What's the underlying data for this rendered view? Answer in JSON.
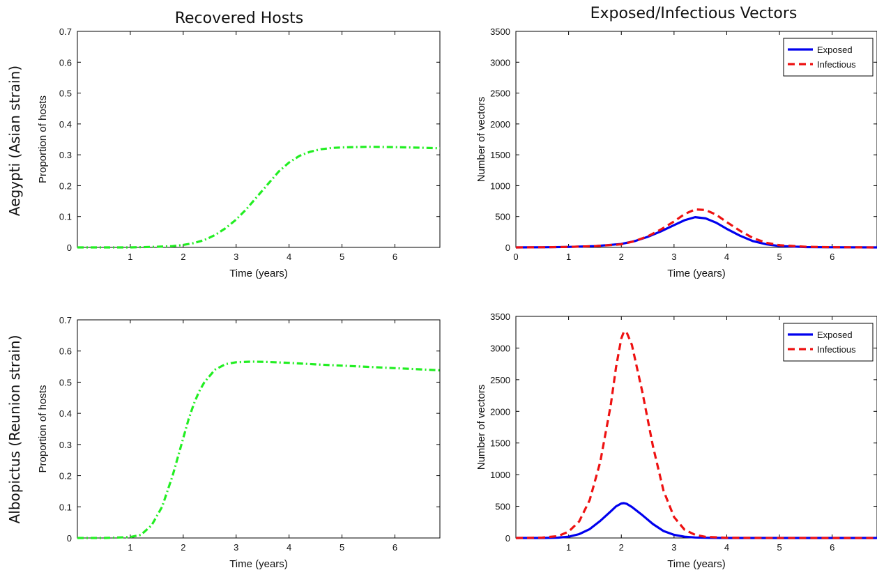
{
  "figure": {
    "col_titles": [
      "Recovered Hosts",
      "Exposed/Infectious Vectors"
    ],
    "row_labels": [
      "Aegypti (Asian strain)",
      "Albopictus (Reunion strain)"
    ]
  },
  "colors": {
    "recovered": "#22ee22",
    "exposed": "#0000ee",
    "infectious": "#ee1111"
  },
  "chart_data": [
    {
      "type": "line",
      "title": "Recovered Hosts",
      "row_label": "Aegypti (Asian strain)",
      "xlabel": "Time (years)",
      "ylabel": "Proportion of hosts",
      "xlim": [
        0,
        6.85
      ],
      "ylim": [
        0,
        0.7
      ],
      "xticks": [
        1,
        2,
        3,
        4,
        5,
        6
      ],
      "xtick_labels": [
        "1",
        "2",
        "3",
        "4",
        "5",
        "6"
      ],
      "yticks": [
        0,
        0.1,
        0.2,
        0.3,
        0.4,
        0.5,
        0.6,
        0.7
      ],
      "ytick_labels": [
        "0",
        "0.1",
        "0.2",
        "0.3",
        "0.4",
        "0.5",
        "0.6",
        "0.7"
      ],
      "grid": false,
      "legend": null,
      "series": [
        {
          "color_key": "recovered",
          "dash": "dashdot",
          "x": [
            0,
            0.5,
            1,
            1.5,
            1.8,
            2,
            2.2,
            2.4,
            2.6,
            2.8,
            3,
            3.2,
            3.4,
            3.6,
            3.8,
            4,
            4.2,
            4.4,
            4.6,
            4.8,
            5,
            5.5,
            6,
            6.5,
            6.85
          ],
          "y": [
            0,
            0,
            0,
            0.002,
            0.004,
            0.008,
            0.014,
            0.024,
            0.04,
            0.062,
            0.09,
            0.125,
            0.165,
            0.205,
            0.245,
            0.275,
            0.297,
            0.31,
            0.318,
            0.322,
            0.324,
            0.326,
            0.325,
            0.323,
            0.321
          ]
        }
      ]
    },
    {
      "type": "line",
      "title": "Exposed/Infectious Vectors",
      "xlabel": "Time (years)",
      "ylabel": "Number of vectors",
      "xlim": [
        0,
        6.85
      ],
      "ylim": [
        0,
        3500
      ],
      "xticks": [
        0,
        1,
        2,
        3,
        4,
        5,
        6
      ],
      "xtick_labels": [
        "0",
        "1",
        "2",
        "3",
        "4",
        "5",
        "6"
      ],
      "yticks": [
        0,
        500,
        1000,
        1500,
        2000,
        2500,
        3000,
        3500
      ],
      "ytick_labels": [
        "0",
        "500",
        "1000",
        "1500",
        "2000",
        "2500",
        "3000",
        "3500"
      ],
      "grid": false,
      "legend": "top-right",
      "series": [
        {
          "name": "Exposed",
          "color_key": "exposed",
          "dash": "solid",
          "x": [
            0,
            0.5,
            1,
            1.5,
            2,
            2.25,
            2.5,
            2.75,
            3,
            3.2,
            3.4,
            3.6,
            3.8,
            4,
            4.25,
            4.5,
            4.75,
            5,
            5.5,
            6,
            6.85
          ],
          "y": [
            0,
            2,
            8,
            20,
            55,
            100,
            170,
            260,
            360,
            440,
            490,
            470,
            400,
            300,
            190,
            100,
            50,
            22,
            6,
            2,
            0
          ]
        },
        {
          "name": "Infectious",
          "color_key": "infectious",
          "dash": "dashed",
          "x": [
            0,
            0.5,
            1,
            1.5,
            2,
            2.25,
            2.5,
            2.75,
            3,
            3.2,
            3.4,
            3.6,
            3.8,
            4,
            4.25,
            4.5,
            4.75,
            5,
            5.5,
            6,
            6.85
          ],
          "y": [
            0,
            2,
            8,
            20,
            50,
            100,
            180,
            290,
            420,
            540,
            615,
            605,
            530,
            410,
            270,
            150,
            75,
            35,
            10,
            3,
            0
          ]
        }
      ]
    },
    {
      "type": "line",
      "row_label": "Albopictus (Reunion strain)",
      "xlabel": "Time (years)",
      "ylabel": "Proportion of hosts",
      "xlim": [
        0,
        6.85
      ],
      "ylim": [
        0,
        0.7
      ],
      "xticks": [
        1,
        2,
        3,
        4,
        5,
        6
      ],
      "xtick_labels": [
        "1",
        "2",
        "3",
        "4",
        "5",
        "6"
      ],
      "yticks": [
        0,
        0.1,
        0.2,
        0.3,
        0.4,
        0.5,
        0.6,
        0.7
      ],
      "ytick_labels": [
        "0",
        "0.1",
        "0.2",
        "0.3",
        "0.4",
        "0.5",
        "0.6",
        "0.7"
      ],
      "grid": false,
      "legend": null,
      "series": [
        {
          "color_key": "recovered",
          "dash": "dashdot",
          "x": [
            0,
            0.5,
            1,
            1.2,
            1.4,
            1.6,
            1.8,
            1.9,
            2,
            2.1,
            2.2,
            2.3,
            2.4,
            2.6,
            2.8,
            3,
            3.3,
            3.6,
            4,
            4.5,
            5,
            5.5,
            6,
            6.5,
            6.85
          ],
          "y": [
            0,
            0,
            0.003,
            0.01,
            0.04,
            0.1,
            0.2,
            0.26,
            0.32,
            0.38,
            0.43,
            0.47,
            0.5,
            0.54,
            0.558,
            0.564,
            0.566,
            0.565,
            0.562,
            0.557,
            0.553,
            0.549,
            0.545,
            0.541,
            0.538
          ]
        }
      ]
    },
    {
      "type": "line",
      "xlabel": "Time (years)",
      "ylabel": "Number of vectors",
      "xlim": [
        0,
        6.85
      ],
      "ylim": [
        0,
        3500
      ],
      "xticks": [
        1,
        2,
        3,
        4,
        5,
        6
      ],
      "xtick_labels": [
        "1",
        "2",
        "3",
        "4",
        "5",
        "6"
      ],
      "yticks": [
        0,
        500,
        1000,
        1500,
        2000,
        2500,
        3000,
        3500
      ],
      "ytick_labels": [
        "0",
        "500",
        "1000",
        "1500",
        "2000",
        "2500",
        "3000",
        "3500"
      ],
      "grid": false,
      "legend": "top-right",
      "series": [
        {
          "name": "Exposed",
          "color_key": "exposed",
          "dash": "solid",
          "x": [
            0,
            0.5,
            0.8,
            1,
            1.2,
            1.4,
            1.6,
            1.8,
            1.9,
            2,
            2.05,
            2.1,
            2.2,
            2.4,
            2.6,
            2.8,
            3,
            3.2,
            3.4,
            3.6,
            4,
            5,
            6,
            6.85
          ],
          "y": [
            0,
            0,
            5,
            20,
            60,
            140,
            270,
            420,
            500,
            545,
            550,
            540,
            490,
            360,
            220,
            110,
            50,
            20,
            8,
            3,
            0,
            0,
            0,
            0
          ]
        },
        {
          "name": "Infectious",
          "color_key": "infectious",
          "dash": "dashed",
          "x": [
            0,
            0.5,
            0.8,
            1,
            1.2,
            1.4,
            1.6,
            1.8,
            1.9,
            2,
            2.05,
            2.1,
            2.2,
            2.4,
            2.6,
            2.8,
            3,
            3.2,
            3.4,
            3.6,
            4,
            5,
            6,
            6.85
          ],
          "y": [
            0,
            5,
            30,
            100,
            260,
            600,
            1200,
            2100,
            2700,
            3150,
            3260,
            3250,
            3050,
            2300,
            1450,
            750,
            330,
            130,
            50,
            18,
            3,
            0,
            0,
            0
          ]
        }
      ]
    }
  ]
}
